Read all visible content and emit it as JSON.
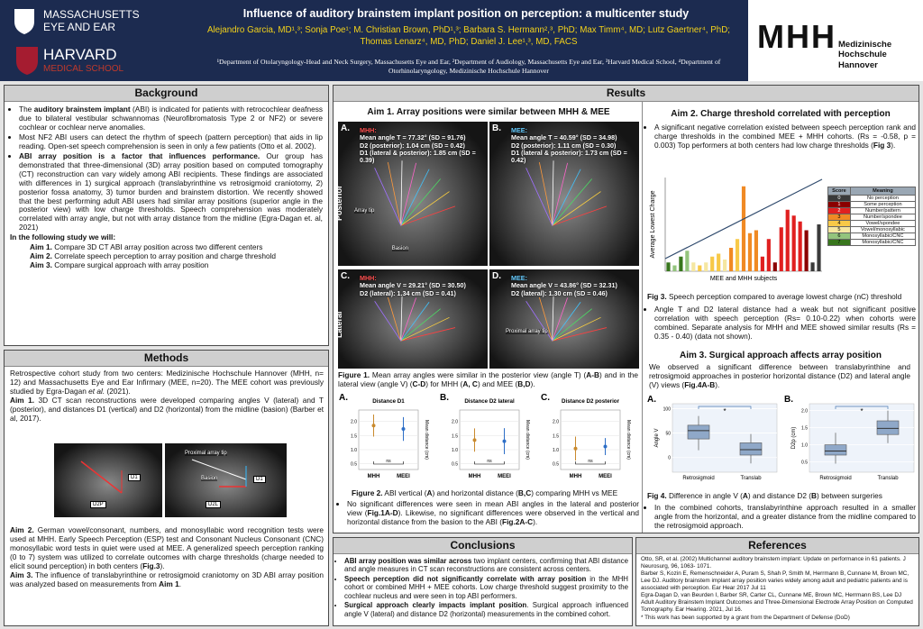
{
  "header": {
    "inst1": "MASSACHUSETTS",
    "inst1b": "EYE AND EAR",
    "inst2": "HARVARD",
    "inst2b": "MEDICAL SCHOOL",
    "title": "Influence of auditory brainstem implant position on perception: a multicenter study",
    "authors": "Alejandro Garcia, MD¹,³; Sonja Poe¹; M. Christian Brown, PhD¹,³; Barbara S. Hermann²,³, PhD; Max Timm⁴, MD; Lutz Gaertner⁴, PhD; Thomas Lenarz⁴, MD, PhD; Daniel J. Lee¹,³, MD, FACS",
    "affiliations": "¹Department of Otolaryngology-Head and Neck Surgery, Massachusetts Eye and Ear, ²Department of Audiology, Massachusetts Eye and Ear, ³Harvard Medical School, ⁴Department of Otorhinolaryngology, Medizinische Hochschule Hannover",
    "partner_logo": "MHH",
    "partner_name": "Medizinische Hochschule Hannover"
  },
  "background": {
    "title": "Background",
    "bullets": [
      [
        "The ",
        {
          "bold": "auditory brainstem implant"
        },
        " (ABI) is indicated for patients with retrocochlear deafness due to bilateral vestibular schwannomas (Neurofibromatosis Type 2 or NF2) or severe cochlear or cochlear nerve anomalies."
      ],
      "Most NF2 ABI users can detect the rhythm of speech (pattern perception) that aids in lip reading. Open-set speech comprehension is seen in only a few patients (Otto et al. 2002).",
      [
        {
          "bold": "ABI array position is a factor that influences performance."
        },
        " Our group has demonstrated that three-dimensional (3D) array position based on computed tomography (CT) reconstruction can vary widely among ABI recipients. These findings are associated with differences in 1) surgical approach (translabyrinthine vs retrosigmoid craniotomy, 2) posterior fossa anatomy, 3) tumor burden and brainstem distortion.  We recently showed that the best performing adult ABI users had similar array positions (superior angle in the posterior view) with low charge thresholds. Speech comprehension was moderately correlated with array angle, but not with array distance from the midline (Egra-Dagan et. al, 2021)"
      ]
    ],
    "study_heading": "In the following study we will:",
    "aims": [
      [
        {
          "bold": "Aim 1."
        },
        " Compare 3D CT ABI array position across two different centers"
      ],
      [
        {
          "bold": "Aim 2."
        },
        " Correlate speech perception to array position and charge threshold"
      ],
      [
        {
          "bold": "Aim 3."
        },
        " Compare surgical approach with array position"
      ]
    ]
  },
  "methods": {
    "title": "Methods",
    "intro": [
      "Retrospective cohort study from two centers: Medizinische Hochschule Hannover (MHH, n= 12) and  Massachusetts Eye and Ear Infirmary (MEE, n=20). The MEE cohort was previously studied by Egra-Dagan ",
      {
        "italic": "et al."
      },
      " (2021)."
    ],
    "aim1": [
      {
        "bold": "Aim 1."
      },
      " 3D CT scan reconstructions were developed comparing angles V (lateral) and T (posterior), and distances D1 (vertical) and D2 (horizontal) from the midline (basion) (Barber et al, 2017)."
    ],
    "image_labels": [
      "D2P",
      "D1",
      "Proximal array tip",
      "Basion",
      "D2L",
      "D1"
    ],
    "aim2": [
      {
        "bold": "Aim 2."
      },
      " German vowel/consonant, numbers, and monosyllabic word recognition tests were used at MHH. Early Speech Perception (ESP) test and Consonant Nucleus Consonant (CNC) monosyllabic word tests in quiet were used at MEE. A generalized speech perception ranking (0 to 7) system was utilized to correlate outcomes with charge thresholds (charge needed to elicit sound perception) in both centers (",
      {
        "bold": "Fig.3"
      },
      ")."
    ],
    "aim3": [
      {
        "bold": "Aim 3."
      },
      " The influence of translabyrinthine or retrosigmoid craniotomy on 3D ABI array position was analyzed based on measurements from ",
      {
        "bold": "Aim 1"
      },
      "."
    ]
  },
  "results": {
    "title": "Results",
    "aim1": {
      "heading": "Aim 1. Array positions were similar between MHH & MEE",
      "view_labels": [
        "Posterior",
        "Lateral"
      ],
      "panels": [
        {
          "panel": "A.",
          "center": "MHH:",
          "lines": [
            "Mean angle T = 77.32° (SD = 91.76)",
            "D2 (posterior): 1.04 cm (SD = 0.42)",
            "D1 (lateral & posterior): 1.85 cm (SD = 0.39)"
          ],
          "tags": [
            "Array tip",
            "Basion"
          ]
        },
        {
          "panel": "B.",
          "center": "MEE:",
          "lines": [
            "Mean angle T = 40.59° (SD = 34.98)",
            "D2 (posterior): 1.11 cm (SD = 0.30)",
            "D1 (lateral & posterior): 1.73 cm (SD = 0.42)"
          ]
        },
        {
          "panel": "C.",
          "center": "MHH:",
          "lines": [
            "Mean angle V = 29.21° (SD = 30.50)",
            "D2 (lateral): 1.34 cm (SD = 0.41)"
          ]
        },
        {
          "panel": "D.",
          "center": "MEE:",
          "lines": [
            "Mean angle V = 43.86° (SD = 32.31)",
            "D2 (lateral): 1.30 cm (SD = 0.46)"
          ],
          "tags": [
            "Proximal array tip"
          ]
        }
      ],
      "caption": [
        {
          "bold": "Figure 1."
        },
        "  Mean array angles were similar in the posterior view (angle T) (",
        {
          "bold": "A-B"
        },
        ") and in the lateral view (angle V) (",
        {
          "bold": "C-D"
        },
        ") for MHH (",
        {
          "bold": "A, C"
        },
        ") and MEE (",
        {
          "bold": "B,D"
        },
        ")."
      ]
    },
    "fig2": {
      "charts": [
        {
          "panel": "A.",
          "title": "Distance D1",
          "ylabel": "Mean distance (cm)",
          "categories": [
            "MHH",
            "MEEI"
          ],
          "values": [
            1.85,
            1.73
          ],
          "errors": [
            0.39,
            0.42
          ],
          "annotation": "ns",
          "colors": [
            "#c98a2e",
            "#2e6fc7"
          ],
          "ylim": [
            0.3,
            2.4
          ],
          "yticks": [
            {
              "value": 0.5,
              "label": "0.5"
            },
            {
              "value": 1,
              "label": "1.0"
            },
            {
              "value": 1.5,
              "label": "1.5"
            },
            {
              "value": 2,
              "label": "2.0"
            }
          ]
        },
        {
          "panel": "B.",
          "title": "Distance D2 lateral",
          "ylabel": "Mean distance (cm)",
          "categories": [
            "MHH",
            "MEEI"
          ],
          "values": [
            1.34,
            1.3
          ],
          "errors": [
            0.41,
            0.46
          ],
          "annotation": "ns",
          "colors": [
            "#c98a2e",
            "#2e6fc7"
          ],
          "ylim": [
            0.3,
            2.4
          ],
          "yticks": [
            {
              "value": 0.5,
              "label": "0.5"
            },
            {
              "value": 1,
              "label": "1.0"
            },
            {
              "value": 1.5,
              "label": "1.5"
            },
            {
              "value": 2,
              "label": "2.0"
            }
          ]
        },
        {
          "panel": "C.",
          "title": "Distance D2 posterior",
          "ylabel": "Mean distance (cm)",
          "categories": [
            "MHH",
            "MEEI"
          ],
          "values": [
            1.04,
            1.11
          ],
          "errors": [
            0.42,
            0.3
          ],
          "annotation": "ns",
          "colors": [
            "#c98a2e",
            "#2e6fc7"
          ],
          "ylim": [
            0.3,
            2.4
          ],
          "yticks": [
            {
              "value": 0.5,
              "label": "0.5"
            },
            {
              "value": 1,
              "label": "1.0"
            },
            {
              "value": 1.5,
              "label": "1.5"
            },
            {
              "value": 2,
              "label": "2.0"
            }
          ]
        }
      ],
      "caption": [
        {
          "bold": "Figure 2."
        },
        " ABI vertical (",
        {
          "bold": "A"
        },
        ") and horizontal distance (",
        {
          "bold": "B,C"
        },
        ") comparing MHH vs MEE"
      ],
      "bullet": [
        "No significant differences were seen in mean ABI angles in the lateral and posterior view (",
        {
          "bold": "Fig.1A-D"
        },
        "). Likewise, no significant differences were observed in the vertical and horizontal distance from the basion to the ABI (",
        {
          "bold": "Fig.2A-C"
        },
        ")."
      ]
    },
    "aim2": {
      "heading": "Aim 2. Charge threshold correlated with perception",
      "bullet": [
        "A significant negative correlation existed between speech perception rank and charge thresholds in the combined MEE + MHH cohorts. (Rs = -0.58, p = 0.003) Top performers at both centers had low charge thresholds (",
        {
          "bold": "Fig 3"
        },
        ")."
      ],
      "fig3": {
        "ylabel": "Average Lowest Charge",
        "xlabel": "MEE and MHH subjects",
        "values": [
          3,
          2,
          5,
          7,
          3,
          2,
          3,
          5,
          6,
          4,
          8,
          11,
          29,
          13,
          14,
          5,
          11,
          3,
          15,
          21,
          19,
          17,
          14,
          3,
          16
        ],
        "colors": [
          "#38761d",
          "#93c47d",
          "#38761d",
          "#93c47d",
          "#f5e7a1",
          "#f7c948",
          "#f5e7a1",
          "#f7c948",
          "#f7c948",
          "#f5e7a1",
          "#f08a24",
          "#f7c948",
          "#f08a24",
          "#f08a24",
          "#f08a24",
          "#e02020",
          "#e02020",
          "#8b0000",
          "#e02020",
          "#e02020",
          "#e02020",
          "#e02020",
          "#8b0000",
          "#3a3a3a",
          "#3a3a3a"
        ],
        "ylim": [
          0,
          32
        ],
        "legend_header": [
          "Score",
          "Meaning"
        ],
        "legend": [
          {
            "score": 0,
            "meaning": "No perception",
            "color": "#3a3a3a"
          },
          {
            "score": 1,
            "meaning": "Some perception",
            "color": "#8b0000"
          },
          {
            "score": 2,
            "meaning": "Number/pattern",
            "color": "#e02020"
          },
          {
            "score": 3,
            "meaning": "Number/spondee",
            "color": "#f08a24"
          },
          {
            "score": 4,
            "meaning": "Vowel/spondee",
            "color": "#f7c948"
          },
          {
            "score": 5,
            "meaning": "Vowel/monosyllabic",
            "color": "#f5e7a1"
          },
          {
            "score": 6,
            "meaning": "Monosyllabic/CNC",
            "color": "#93c47d"
          },
          {
            "score": 7,
            "meaning": "Monosyllabic/CNC",
            "color": "#38761d"
          }
        ]
      },
      "caption": [
        {
          "bold": "Fig 3."
        },
        " Speech perception compared to average lowest charge (nC) threshold"
      ],
      "bullet2": "Angle T and D2 lateral distance had a weak but not significant positive correlation with speech perception (Rs= 0.10-0.22) when cohorts were combined. Separate analysis for MHH and MEE showed similar results (Rs = 0.35 - 0.40) (data not shown)."
    },
    "aim3": {
      "heading": "Aim 3. Surgical approach affects array position",
      "text": [
        "We observed a significant difference between translabyrinthine and retrosigmoid approaches in posterior horizontal distance (D2) and lateral angle (V) views (",
        {
          "bold": "Fig.4A-B"
        },
        ")."
      ],
      "fig4": [
        {
          "panel": "A.",
          "ylabel": "Angle V",
          "categories": [
            "Retrosigmoid",
            "Translab"
          ],
          "annotation": "*",
          "color": "#8fa8c8",
          "ylim": [
            -30,
            110
          ],
          "yticks": [
            0,
            50,
            100
          ],
          "boxes": [
            {
              "low": 15,
              "q1": 38,
              "median": 55,
              "q3": 66,
              "high": 85
            },
            {
              "low": -12,
              "q1": 5,
              "median": 16,
              "q3": 30,
              "high": 48
            }
          ]
        },
        {
          "panel": "B.",
          "ylabel": "D2p (cm)",
          "categories": [
            "Retrosigmoid",
            "Translab"
          ],
          "annotation": "*",
          "color": "#8fa8c8",
          "ylim": [
            0.2,
            2.2
          ],
          "yticks": [
            {
              "value": 0.5,
              "label": "0.5"
            },
            {
              "value": 1,
              "label": "1.0"
            },
            {
              "value": 1.5,
              "label": "1.5"
            },
            {
              "value": 2,
              "label": "2.0"
            }
          ],
          "boxes": [
            {
              "low": 0.45,
              "q1": 0.7,
              "median": 0.82,
              "q3": 1.0,
              "high": 1.35
            },
            {
              "low": 1.05,
              "q1": 1.3,
              "median": 1.48,
              "q3": 1.7,
              "high": 2.0
            }
          ]
        }
      ],
      "caption": [
        {
          "bold": "Fig 4."
        },
        " Difference in angle V (",
        {
          "bold": "A"
        },
        ") and distance D2 (",
        {
          "bold": "B"
        },
        ") between surgeries"
      ],
      "bullet": "In the combined cohorts, translabyrinthine approach resulted in a smaller angle from the horizontal, and a greater distance from the midline compared to the retrosigmoid approach."
    }
  },
  "conclusions": {
    "title": "Conclusions",
    "bullets": [
      [
        {
          "bold": "ABI array position was similar across"
        },
        " two implant centers, confirming that ABI distance and angle measures in CT scan reconstructions are consistent across centers."
      ],
      [
        {
          "bold": "Speech perception did not significantly correlate with array position"
        },
        " in the MHH cohort or combined MHH + MEE cohorts. Low charge threshold suggest proximity to the cochlear nucleus and were seen in top ABI performers."
      ],
      [
        {
          "bold": "Surgical approach clearly impacts implant position"
        },
        ". Surgical approach influenced angle V (lateral) and distance D2 (horizontal) measurements in the combined cohort."
      ]
    ]
  },
  "references": {
    "title": "References",
    "items": [
      "Otto, SR, et al. (2002) Multichannel auditory brainstem implant: Update on performance in 61 patients. J Neurosurg, 96, 1063- 1071.",
      "Barber S, Kozin E, Remenschneider A, Puram S, Shah P, Smith M, Herrmann B, Cunnane M, Brown MC, Lee DJ. Auditory brainstem implant array position varies widely among adult and pediatric patients and is associated with perception. Ear Hear 2017 Jul 11",
      "Egra-Dagan D, van Beurden I, Barber SR, Carter CL, Cunnane ME, Brown MC, Herrmann BS, Lee DJ Adult Auditory Brainstem Implant Outcomes and Three-Dimensional Electrode Array Position on Computed Tomography. Ear Hearing. 2021, Jul 16.",
      "* This work has been supported by a grant from the Department of Defense (DoD)"
    ]
  }
}
